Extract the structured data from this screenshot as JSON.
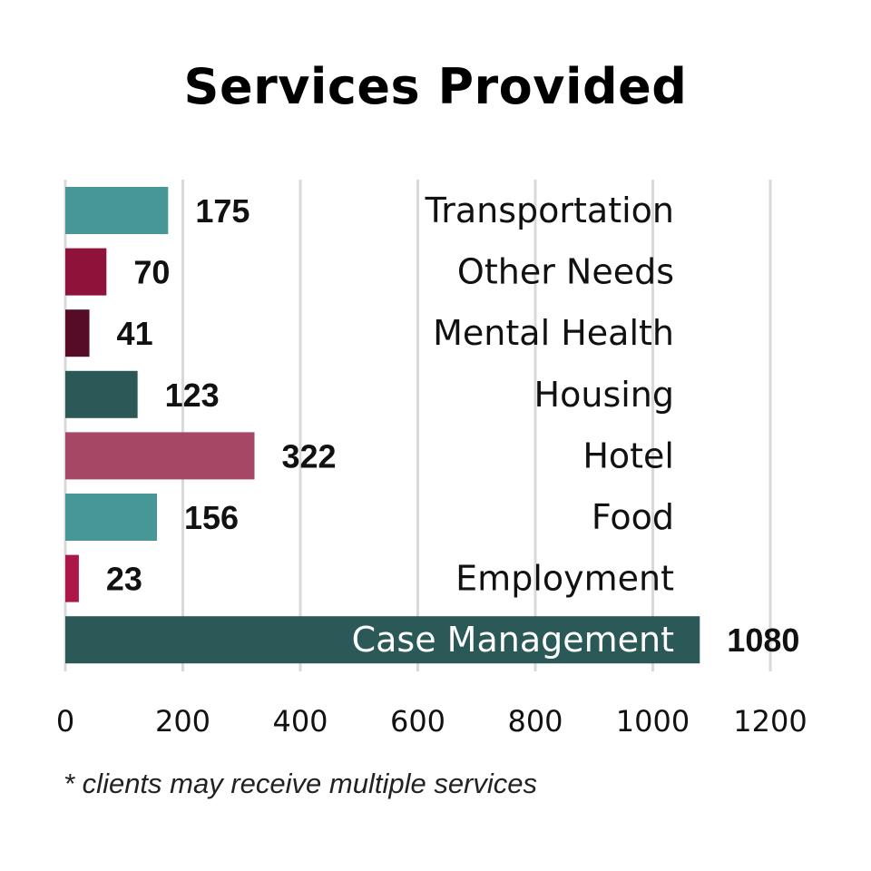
{
  "chart_data": {
    "type": "bar",
    "orientation": "horizontal",
    "title": "Services Provided",
    "categories": [
      "Transportation",
      "Other Needs",
      "Mental Health",
      "Housing",
      "Hotel",
      "Food",
      "Employment",
      "Case Management"
    ],
    "values": [
      175,
      70,
      41,
      123,
      322,
      156,
      23,
      1080
    ],
    "data_labels": [
      "175",
      "70",
      "41",
      "123",
      "322",
      "156",
      "23",
      "1080"
    ],
    "bar_colors": [
      "#479796",
      "#8e1239",
      "#560c26",
      "#2a5957",
      "#a64766",
      "#479796",
      "#ac1747",
      "#2a5957"
    ],
    "xlim": [
      0,
      1200
    ],
    "x_ticks": [
      0,
      200,
      400,
      600,
      800,
      1000,
      1200
    ],
    "x_tick_labels": [
      "0",
      "200",
      "400",
      "600",
      "800",
      "1000",
      "1200"
    ],
    "grid": true,
    "legend": "none",
    "footnote": "* clients may receive multiple services"
  }
}
